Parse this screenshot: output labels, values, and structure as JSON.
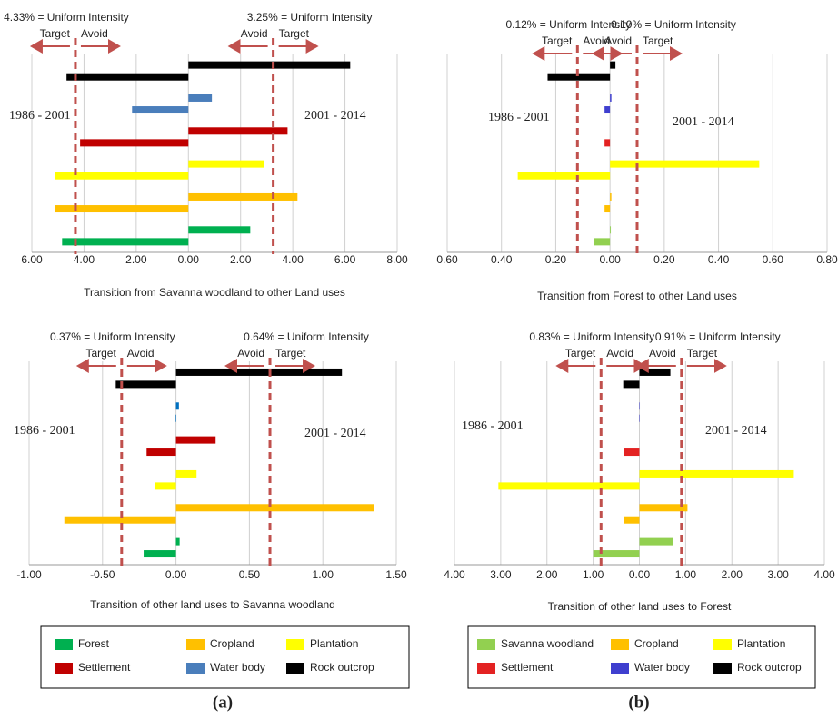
{
  "chart_data": [
    {
      "type": "bar",
      "orientation": "horizontal",
      "xlabel": "Transition from Savanna woodland to other Land uses",
      "periods": [
        "1986 - 2001",
        "2001 - 2014"
      ],
      "series": [
        {
          "name": "Rock outcrop",
          "color": "#000000",
          "values": [
            -4.67,
            6.2
          ]
        },
        {
          "name": "Water body",
          "color": "#4a7ebb",
          "values": [
            -2.16,
            0.9
          ]
        },
        {
          "name": "Settlement",
          "color": "#c00000",
          "values": [
            -4.15,
            3.8
          ]
        },
        {
          "name": "Plantation",
          "color": "#ffff00",
          "values": [
            -5.12,
            2.9
          ]
        },
        {
          "name": "Cropland",
          "color": "#ffc000",
          "values": [
            -5.12,
            4.18
          ]
        },
        {
          "name": "Forest",
          "color": "#00b050",
          "values": [
            -4.84,
            2.37
          ]
        }
      ],
      "xlim": [
        -6,
        8
      ],
      "xticks": [
        {
          "value": -6,
          "label": "6.00"
        },
        {
          "value": -4,
          "label": "4.00"
        },
        {
          "value": -2,
          "label": "2.00"
        },
        {
          "value": 0,
          "label": "0.00"
        },
        {
          "value": 2,
          "label": "2.00"
        },
        {
          "value": 4,
          "label": "4.00"
        },
        {
          "value": 6,
          "label": "6.00"
        },
        {
          "value": 8,
          "label": "8.00"
        }
      ],
      "grid": true,
      "uniform_lines": [
        {
          "value": -4.33,
          "label": "4.33% = Uniform Intensity",
          "arrows": [
            "Target",
            "Avoid"
          ]
        },
        {
          "value": 3.25,
          "label": "3.25% = Uniform Intensity",
          "arrows": [
            "Avoid",
            "Target"
          ]
        }
      ]
    },
    {
      "type": "bar",
      "orientation": "horizontal",
      "xlabel": "Transition from Forest to other Land uses",
      "periods": [
        "1986 - 2001",
        "2001 - 2014"
      ],
      "series": [
        {
          "name": "Rock outcrop",
          "color": "#000000",
          "values": [
            -0.23,
            0.02
          ]
        },
        {
          "name": "Water body",
          "color": "#3f3fcf",
          "values": [
            -0.02,
            0.005
          ]
        },
        {
          "name": "Settlement",
          "color": "#e32222",
          "values": [
            -0.02,
            0
          ]
        },
        {
          "name": "Plantation",
          "color": "#ffff00",
          "values": [
            -0.34,
            0.55
          ]
        },
        {
          "name": "Cropland",
          "color": "#ffc000",
          "values": [
            -0.02,
            0.005
          ]
        },
        {
          "name": "Savanna woodland",
          "color": "#92d050",
          "values": [
            -0.06,
            0.003
          ]
        }
      ],
      "xlim": [
        -0.6,
        0.8
      ],
      "xticks": [
        {
          "value": -0.6,
          "label": "0.60"
        },
        {
          "value": -0.4,
          "label": "0.40"
        },
        {
          "value": -0.2,
          "label": "0.20"
        },
        {
          "value": 0,
          "label": "0.00"
        },
        {
          "value": 0.2,
          "label": "0.20"
        },
        {
          "value": 0.4,
          "label": "0.40"
        },
        {
          "value": 0.6,
          "label": "0.60"
        },
        {
          "value": 0.8,
          "label": "0.80"
        }
      ],
      "grid": true,
      "uniform_lines": [
        {
          "value": -0.12,
          "label": "0.12% = Uniform Intensity",
          "arrows": [
            "Target",
            "Avoid"
          ]
        },
        {
          "value": 0.1,
          "label": "0.10% = Uniform Intensity",
          "arrows": [
            "Avoid",
            "Target"
          ]
        }
      ]
    },
    {
      "type": "bar",
      "orientation": "horizontal",
      "xlabel": "Transition of other land uses to Savanna woodland",
      "periods": [
        "1986 - 2001",
        "2001 - 2014"
      ],
      "series": [
        {
          "name": "Rock outcrop",
          "color": "#000000",
          "values": [
            -0.41,
            1.13
          ]
        },
        {
          "name": "Water body",
          "color": "#0070c0",
          "values": [
            -0.005,
            0.02
          ]
        },
        {
          "name": "Settlement",
          "color": "#c00000",
          "values": [
            -0.2,
            0.27
          ]
        },
        {
          "name": "Plantation",
          "color": "#ffff00",
          "values": [
            -0.14,
            0.14
          ]
        },
        {
          "name": "Cropland",
          "color": "#ffc000",
          "values": [
            -0.76,
            1.35
          ]
        },
        {
          "name": "Forest",
          "color": "#00b050",
          "values": [
            -0.22,
            0.025
          ]
        }
      ],
      "xlim": [
        -1,
        1.5
      ],
      "xticks": [
        {
          "value": -1,
          "label": "-1.00"
        },
        {
          "value": -0.5,
          "label": "-0.50"
        },
        {
          "value": 0,
          "label": "0.00"
        },
        {
          "value": 0.5,
          "label": "0.50"
        },
        {
          "value": 1,
          "label": "1.00"
        },
        {
          "value": 1.5,
          "label": "1.50"
        }
      ],
      "grid": true,
      "uniform_lines": [
        {
          "value": -0.37,
          "label": "0.37% = Uniform Intensity",
          "arrows": [
            "Target",
            "Avoid"
          ]
        },
        {
          "value": 0.64,
          "label": "0.64% = Uniform Intensity",
          "arrows": [
            "Avoid",
            "Target"
          ]
        }
      ]
    },
    {
      "type": "bar",
      "orientation": "horizontal",
      "xlabel": "Transition of other land uses to Forest",
      "periods": [
        "1986 - 2001",
        "2001 - 2014"
      ],
      "series": [
        {
          "name": "Rock outcrop",
          "color": "#000000",
          "values": [
            -0.35,
            0.67
          ]
        },
        {
          "name": "Water body",
          "color": "#3f3fcf",
          "values": [
            -0.01,
            0.01
          ]
        },
        {
          "name": "Settlement",
          "color": "#e32222",
          "values": [
            -0.33,
            0
          ]
        },
        {
          "name": "Plantation",
          "color": "#ffff00",
          "values": [
            -3.05,
            3.34
          ]
        },
        {
          "name": "Cropland",
          "color": "#ffc000",
          "values": [
            -0.33,
            1.04
          ]
        },
        {
          "name": "Savanna woodland",
          "color": "#92d050",
          "values": [
            -1.0,
            0.73
          ]
        }
      ],
      "xlim": [
        -4,
        4
      ],
      "xticks": [
        {
          "value": -4,
          "label": "4.00"
        },
        {
          "value": -3,
          "label": "3.00"
        },
        {
          "value": -2,
          "label": "2.00"
        },
        {
          "value": -1,
          "label": "1.00"
        },
        {
          "value": 0,
          "label": "0.00"
        },
        {
          "value": 1,
          "label": "1.00"
        },
        {
          "value": 2,
          "label": "2.00"
        },
        {
          "value": 3,
          "label": "3.00"
        },
        {
          "value": 4,
          "label": "4.00"
        }
      ],
      "grid": true,
      "uniform_lines": [
        {
          "value": -0.83,
          "label": "0.83% = Uniform Intensity",
          "arrows": [
            "Target",
            "Avoid"
          ]
        },
        {
          "value": 0.91,
          "label": "0.91% = Uniform Intensity",
          "arrows": [
            "Avoid",
            "Target"
          ]
        }
      ]
    }
  ],
  "captions": [
    "(a)",
    "(b)"
  ]
}
